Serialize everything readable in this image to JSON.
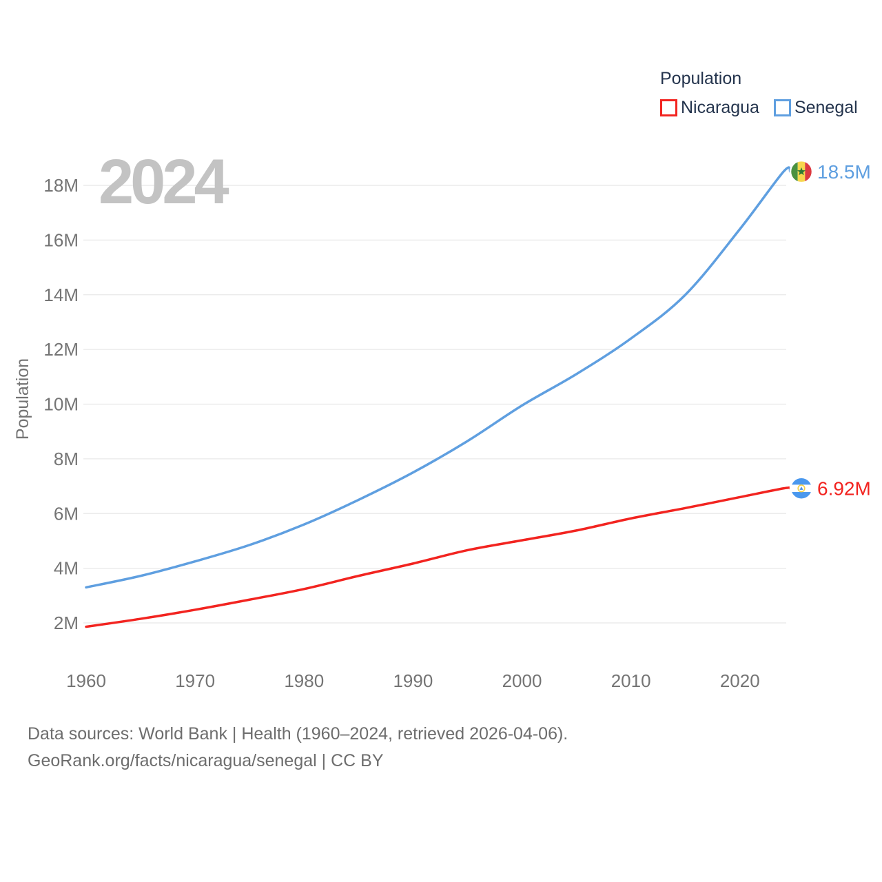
{
  "legend": {
    "title": "Population",
    "items": [
      {
        "label": "Nicaragua",
        "color": "#f22420"
      },
      {
        "label": "Senegal",
        "color": "#5f9fe0"
      }
    ]
  },
  "watermark": "2024",
  "chart_data": {
    "type": "line",
    "title": "Population",
    "ylabel": "Population",
    "x": [
      1960,
      1965,
      1970,
      1975,
      1980,
      1985,
      1990,
      1995,
      2000,
      2005,
      2010,
      2015,
      2020,
      2024
    ],
    "series": [
      {
        "name": "Nicaragua",
        "color": "#f22420",
        "flag": "nicaragua",
        "end_label": "6.92M",
        "values": [
          1.86,
          2.15,
          2.48,
          2.85,
          3.24,
          3.72,
          4.17,
          4.66,
          5.02,
          5.38,
          5.82,
          6.2,
          6.6,
          6.92
        ]
      },
      {
        "name": "Senegal",
        "color": "#5f9fe0",
        "flag": "senegal",
        "end_label": "18.5M",
        "values": [
          3.3,
          3.72,
          4.25,
          4.85,
          5.6,
          6.5,
          7.5,
          8.65,
          9.95,
          11.1,
          12.4,
          14.0,
          16.4,
          18.5
        ]
      }
    ],
    "yticks": [
      {
        "v": 2,
        "label": "2M"
      },
      {
        "v": 4,
        "label": "4M"
      },
      {
        "v": 6,
        "label": "6M"
      },
      {
        "v": 8,
        "label": "8M"
      },
      {
        "v": 10,
        "label": "10M"
      },
      {
        "v": 12,
        "label": "12M"
      },
      {
        "v": 14,
        "label": "14M"
      },
      {
        "v": 16,
        "label": "16M"
      },
      {
        "v": 18,
        "label": "18M"
      }
    ],
    "xticks": [
      {
        "v": 1960,
        "label": "1960"
      },
      {
        "v": 1970,
        "label": "1970"
      },
      {
        "v": 1980,
        "label": "1980"
      },
      {
        "v": 1990,
        "label": "1990"
      },
      {
        "v": 2000,
        "label": "2000"
      },
      {
        "v": 2010,
        "label": "2010"
      },
      {
        "v": 2020,
        "label": "2020"
      }
    ],
    "xlim": [
      1960,
      2024
    ],
    "ylim": [
      2,
      18
    ],
    "grid": true,
    "legend_position": "top-right",
    "colors": {
      "axis_text": "#747474",
      "gridline": "#e8e8e8",
      "watermark": "#c3c3c3",
      "legend_text": "#24344d",
      "footer_text": "#6d6d6d"
    }
  },
  "footer": {
    "line1": "Data sources: World Bank | Health (1960–2024, retrieved 2026-04-06).",
    "line2": "GeoRank.org/facts/nicaragua/senegal | CC BY"
  }
}
